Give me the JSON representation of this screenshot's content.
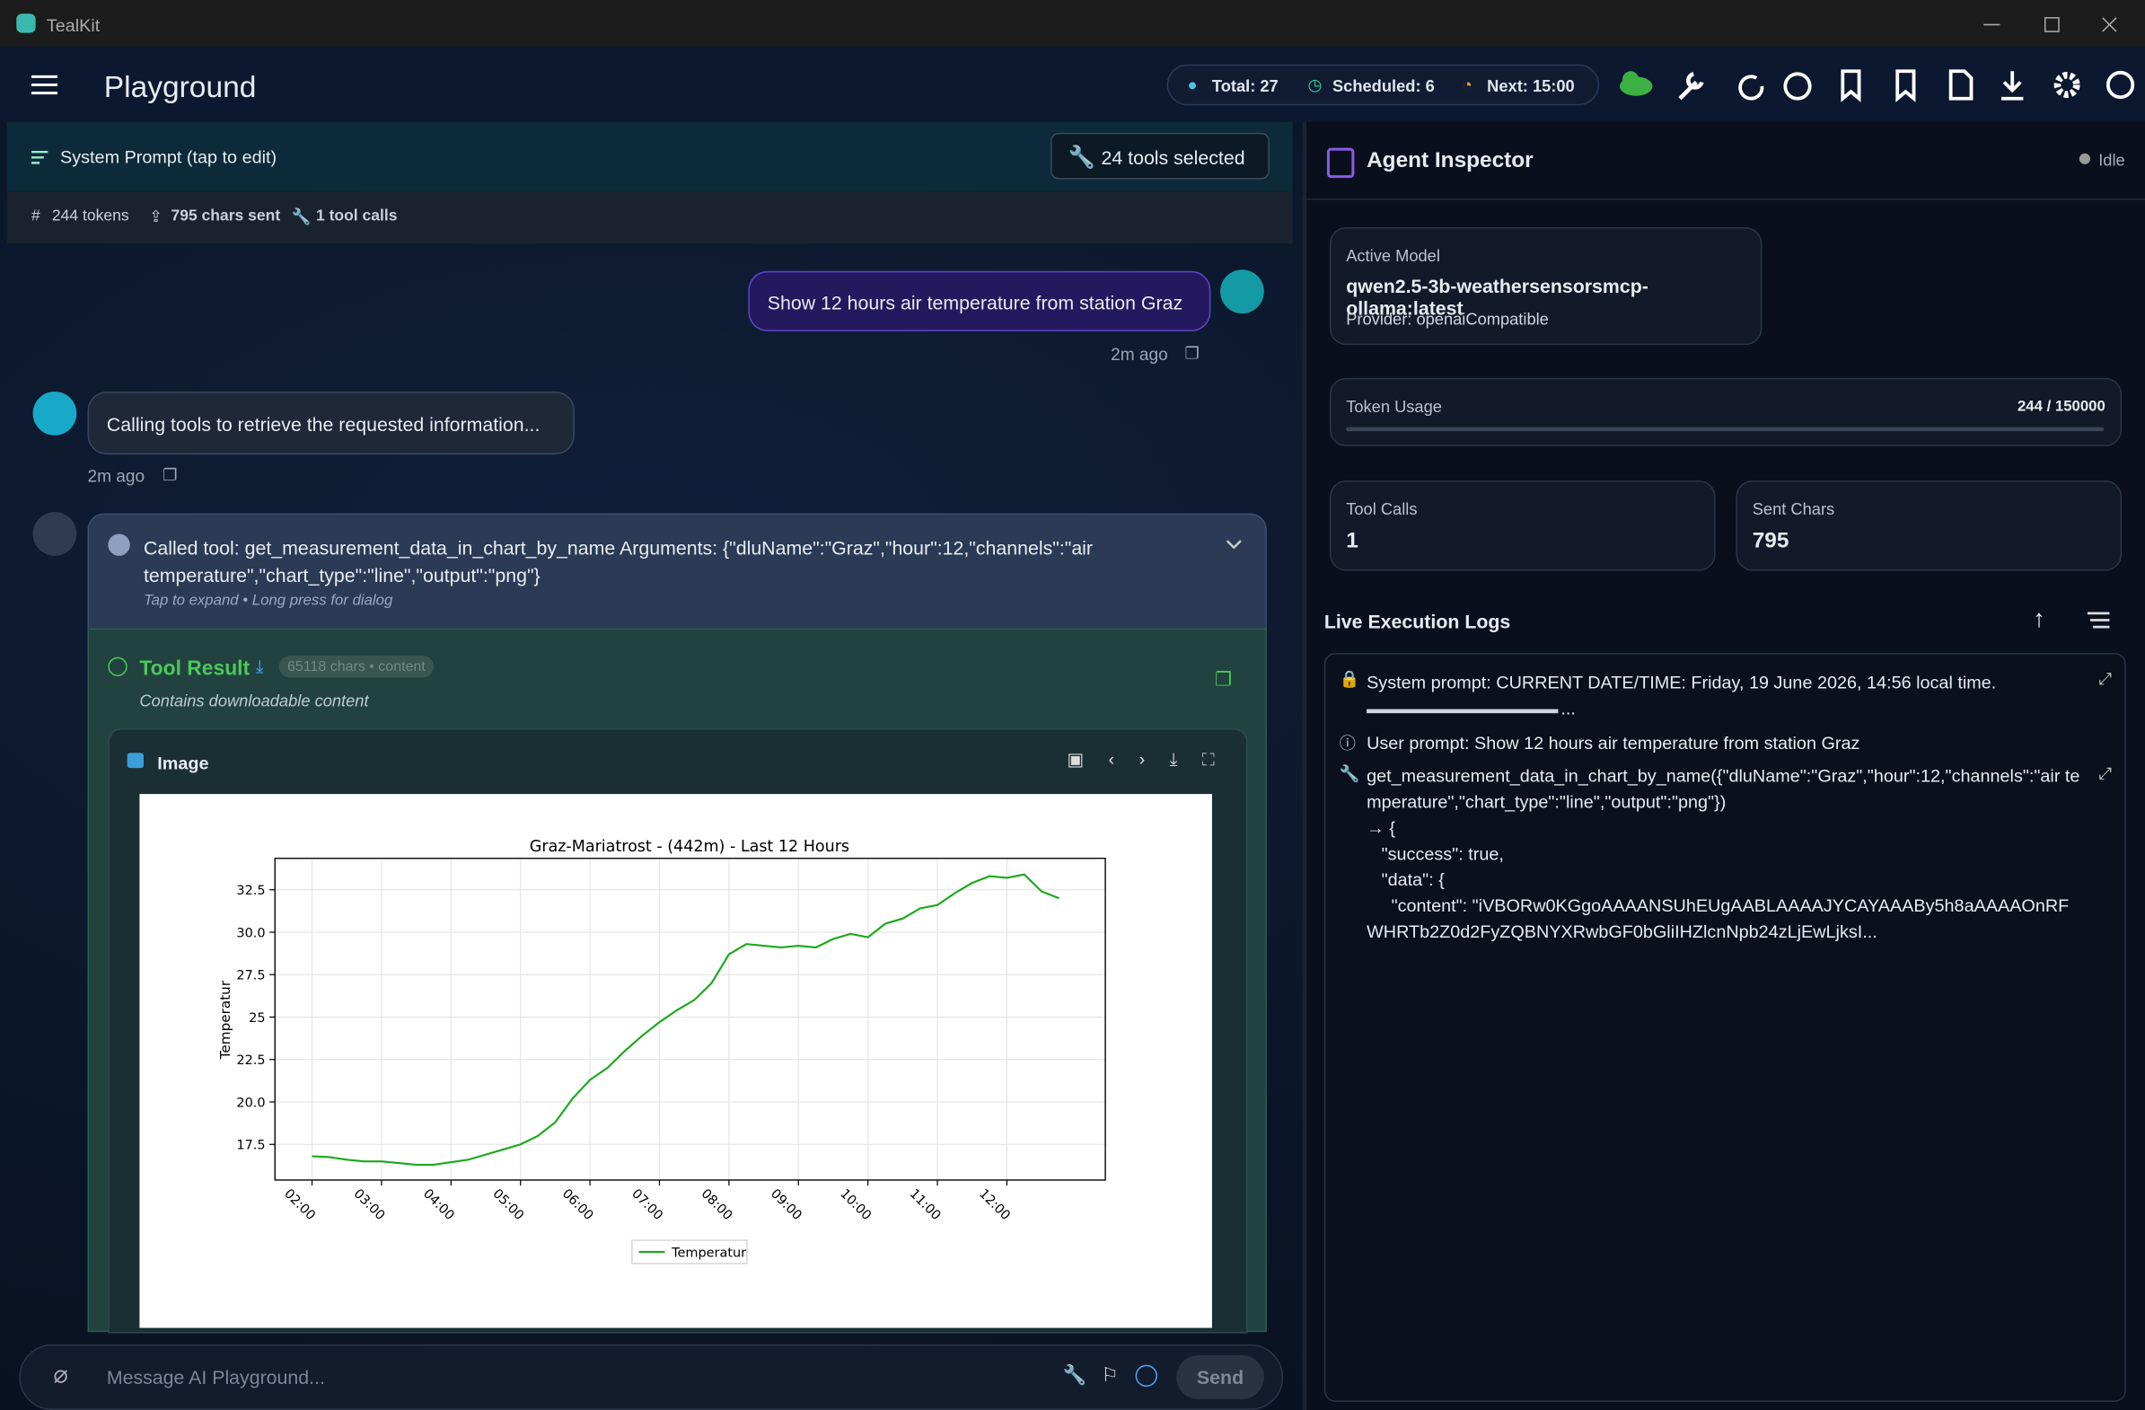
{
  "window": {
    "title": "TealKit"
  },
  "app_bar": {
    "title": "Playground",
    "status": [
      "Total: 27",
      "Scheduled: 6",
      "Next: 15:00"
    ]
  },
  "chat": {
    "system_prompt": "System Prompt (tap to edit)",
    "tools_selected": "24 tools selected",
    "stats": [
      "244 tokens",
      "795 chars sent",
      "1 tool calls"
    ],
    "messages": [
      {
        "text": "Show 12 hours air temperature from station Graz",
        "time": "2m ago"
      },
      {
        "text": "Calling tools to retrieve the requested information...",
        "time": "2m ago"
      }
    ],
    "tool_call": {
      "text": "Called tool: get_measurement_data_in_chart_by_name Arguments: {\"dluName\":\"Graz\",\"hour\":12,\"channels\":\"air temperature\",\"chart_type\":\"line\",\"output\":\"png\"}",
      "hint": "Tap to expand • Long press for dialog"
    },
    "tool_result": {
      "title": "Tool Result",
      "badge": "65118 chars • content",
      "note": "Contains downloadable content",
      "image_label": "Image"
    },
    "input": {
      "placeholder": "Message AI Playground...",
      "send": "Send"
    }
  },
  "inspector": {
    "title": "Agent Inspector",
    "state": "Idle",
    "model_label": "Active Model",
    "model": "qwen2.5-3b-weathersensorsmcp-ollama:latest",
    "provider": "Provider: openaiCompatible",
    "token_label": "Token Usage",
    "token_value": "244 / 150000",
    "tool_calls_label": "Tool Calls",
    "tool_calls": "1",
    "sent_label": "Sent Chars",
    "sent": "795",
    "logs_title": "Live Execution Logs",
    "logs": [
      "System prompt: CURRENT DATE/TIME: Friday, 19 June 2026, 14:56 local time.",
      "...",
      "User prompt: Show 12 hours air temperature from station Graz",
      "get_measurement_data_in_chart_by_name({\"dluName\":\"Graz\",\"hour\":12,\"channels\":\"air temperature\",\"chart_type\":\"line\",\"output\":\"png\"})\n→ {\n   \"success\": true,\n   \"data\": {\n     \"content\": \"iVBORw0KGgoAAAANSUhEUgAABLAAAAJYCAYAAABy5h8aAAAAOnRFWHRTb2Z0d2FyZQBNYXRwbGF0bGliIHZlcnNpb24zLjEwLjksI..."
    ]
  },
  "chart_data": {
    "type": "line",
    "title": "Graz-Mariatrost - (442m) - Last 12 Hours",
    "y_label": "Temperatur",
    "x": [
      "02:00",
      "02:15",
      "02:30",
      "02:45",
      "03:00",
      "03:15",
      "03:30",
      "03:45",
      "04:00",
      "04:15",
      "04:30",
      "04:45",
      "05:00",
      "05:15",
      "05:30",
      "05:45",
      "06:00",
      "06:15",
      "06:30",
      "06:45",
      "07:00",
      "07:15",
      "07:30",
      "07:45",
      "08:00",
      "08:15",
      "08:30",
      "08:45",
      "09:00",
      "09:15",
      "09:30",
      "09:45",
      "10:00",
      "10:15",
      "10:30",
      "10:45",
      "11:00",
      "11:15",
      "11:30",
      "11:45",
      "12:00",
      "12:15",
      "12:30",
      "12:45"
    ],
    "series": [
      {
        "name": "Temperatur",
        "color": "#1aa81a",
        "values": [
          16.8,
          16.75,
          16.6,
          16.5,
          16.5,
          16.4,
          16.3,
          16.3,
          16.45,
          16.6,
          16.9,
          17.2,
          17.5,
          18.0,
          18.8,
          20.2,
          21.3,
          22.0,
          23.0,
          23.9,
          24.7,
          25.4,
          26.0,
          27.0,
          28.7,
          29.3,
          29.2,
          29.1,
          29.2,
          29.1,
          29.6,
          29.9,
          29.7,
          30.5,
          30.8,
          31.4,
          31.6,
          32.3,
          32.9,
          33.3,
          33.2,
          33.4,
          32.4,
          32.0
        ]
      }
    ],
    "xlim": [
      "01:28",
      "13:25"
    ],
    "xticks": [
      "02:00",
      "03:00",
      "04:00",
      "05:00",
      "06:00",
      "07:00",
      "08:00",
      "09:00",
      "10:00",
      "11:00",
      "12:00"
    ],
    "ylim": [
      15.4,
      34.35
    ],
    "yticks": [
      17.5,
      {
        "value": 20,
        "label": "20.0"
      },
      22.5,
      25.0,
      27.5,
      {
        "value": 30,
        "label": "30.0"
      },
      32.5
    ],
    "grid": true,
    "legend": "bottom"
  }
}
